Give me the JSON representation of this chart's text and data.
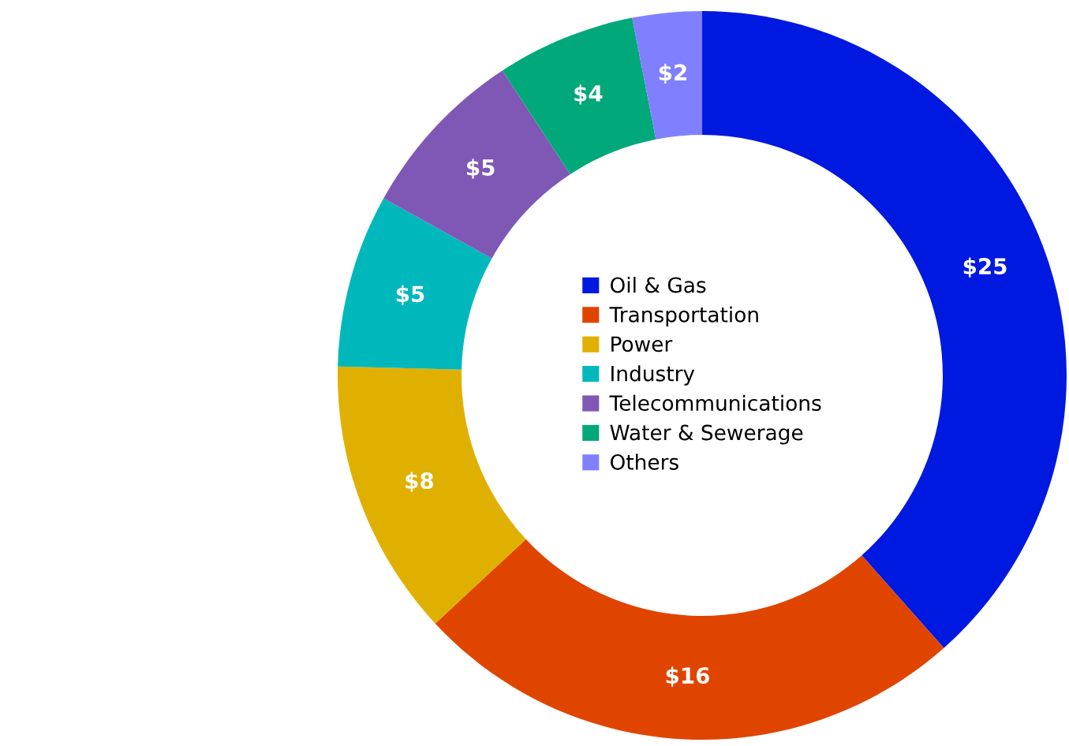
{
  "chart_data": {
    "type": "donut",
    "categories": [
      "Oil & Gas",
      "Transportation",
      "Power",
      "Industry",
      "Telecommunications",
      "Water & Sewerage",
      "Others"
    ],
    "values": [
      25,
      16,
      8,
      5,
      5,
      4,
      2
    ],
    "colors": [
      "#0019e0",
      "#e04500",
      "#e0b000",
      "#00b8bc",
      "#7f58b5",
      "#00a87a",
      "#8080ff"
    ],
    "value_labels": [
      "$25",
      "$16",
      "$8",
      "$5",
      "$5",
      "$4",
      "$2"
    ],
    "legend": "center"
  }
}
